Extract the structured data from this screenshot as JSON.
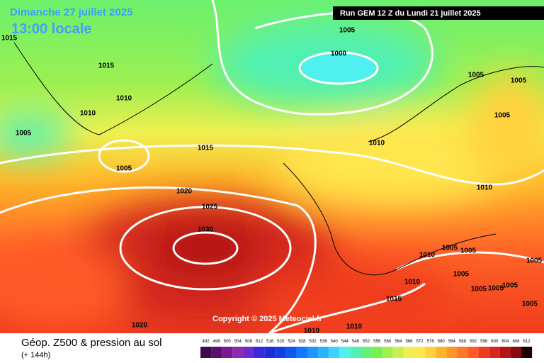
{
  "header": {
    "date": "Dimanche 27 juillet 2025",
    "time": "13:00 locale",
    "run": "Run GEM 12 Z du Lundi 21 juillet 2025"
  },
  "isobars": [
    "1005",
    "1000",
    "1015",
    "1010",
    "1010",
    "1005",
    "1015",
    "1005",
    "1010",
    "1005",
    "1005",
    "1005",
    "1010",
    "1020",
    "1025",
    "1030",
    "1010",
    "1005",
    "1005",
    "1005",
    "1010",
    "1005",
    "1005",
    "1005",
    "1005",
    "1005",
    "1015",
    "1020",
    "1010",
    "1010",
    "1015"
  ],
  "copyright": "Copyright © 2025 Meteociel.fr",
  "footer": {
    "title": "Géop. Z500 & pression au sol",
    "lead": "(+ 144h)"
  },
  "legend": {
    "labels": [
      "492",
      "496",
      "500",
      "504",
      "508",
      "512",
      "516",
      "520",
      "524",
      "528",
      "532",
      "536",
      "540",
      "544",
      "548",
      "552",
      "556",
      "560",
      "564",
      "568",
      "572",
      "576",
      "580",
      "584",
      "588",
      "592",
      "596",
      "600",
      "604",
      "608",
      "612"
    ],
    "colors": [
      "#3c0a4a",
      "#5a0f6e",
      "#7a1a8f",
      "#8c2ab0",
      "#6a2bd0",
      "#3c28d8",
      "#1e2ed8",
      "#1040e0",
      "#0a5af0",
      "#1478ff",
      "#1e96ff",
      "#28b4ff",
      "#3cd2ff",
      "#50f0f0",
      "#50f0b4",
      "#64f078",
      "#78f050",
      "#a0f050",
      "#c8f050",
      "#f0f050",
      "#ffe650",
      "#ffd23c",
      "#ffb428",
      "#ff9628",
      "#ff7828",
      "#ff5a28",
      "#f03c1e",
      "#d2281e",
      "#b41414",
      "#8c0a0a",
      "#1e0000"
    ]
  }
}
